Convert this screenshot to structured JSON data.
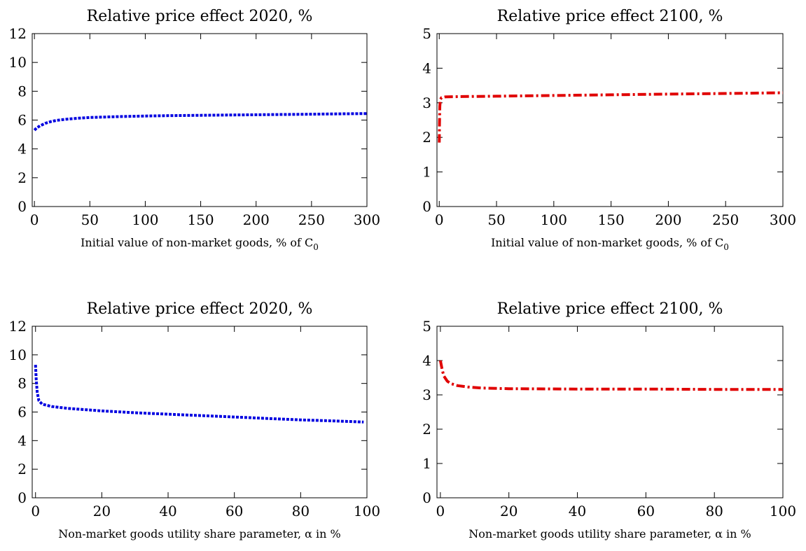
{
  "chart_data": [
    {
      "type": "line",
      "title": "Relative price effect 2020, %",
      "xlabel": "Initial value of non-market goods, % of C",
      "xlabel_sub": "0",
      "xlim": [
        -2,
        300
      ],
      "ylim": [
        0,
        12
      ],
      "xticks": [
        0,
        50,
        100,
        150,
        200,
        250,
        300
      ],
      "yticks": [
        0,
        2,
        4,
        6,
        8,
        10,
        12
      ],
      "grid": false,
      "series": [
        {
          "color": "#0000e0",
          "dash": "dotted",
          "points": [
            [
              0,
              5.3
            ],
            [
              2,
              5.45
            ],
            [
              5,
              5.6
            ],
            [
              10,
              5.78
            ],
            [
              15,
              5.9
            ],
            [
              20,
              5.98
            ],
            [
              30,
              6.07
            ],
            [
              40,
              6.13
            ],
            [
              50,
              6.18
            ],
            [
              75,
              6.24
            ],
            [
              100,
              6.28
            ],
            [
              125,
              6.31
            ],
            [
              150,
              6.33
            ],
            [
              175,
              6.35
            ],
            [
              200,
              6.37
            ],
            [
              225,
              6.39
            ],
            [
              250,
              6.41
            ],
            [
              275,
              6.43
            ],
            [
              300,
              6.45
            ]
          ]
        }
      ]
    },
    {
      "type": "line",
      "title": "Relative price effect 2100, %",
      "xlabel": "Initial value of non-market goods, % of C",
      "xlabel_sub": "0",
      "xlim": [
        -2,
        300
      ],
      "ylim": [
        0,
        5
      ],
      "xticks": [
        0,
        50,
        100,
        150,
        200,
        250,
        300
      ],
      "yticks": [
        0,
        1,
        2,
        3,
        4,
        5
      ],
      "grid": false,
      "series": [
        {
          "color": "#e00000",
          "dash": "dashdot",
          "points": [
            [
              0,
              1.85
            ],
            [
              0.2,
              2.4
            ],
            [
              0.5,
              2.9
            ],
            [
              1,
              3.1
            ],
            [
              2,
              3.15
            ],
            [
              5,
              3.17
            ],
            [
              20,
              3.18
            ],
            [
              50,
              3.19
            ],
            [
              100,
              3.21
            ],
            [
              150,
              3.23
            ],
            [
              200,
              3.25
            ],
            [
              250,
              3.27
            ],
            [
              300,
              3.29
            ]
          ]
        }
      ]
    },
    {
      "type": "line",
      "title": "Relative price effect 2020, %",
      "xlabel": "Non-market goods utility share parameter, α in %",
      "xlim": [
        -1,
        100
      ],
      "ylim": [
        0,
        12
      ],
      "xticks": [
        0,
        20,
        40,
        60,
        80,
        100
      ],
      "yticks": [
        0,
        2,
        4,
        6,
        8,
        10,
        12
      ],
      "grid": false,
      "series": [
        {
          "color": "#0000e0",
          "dash": "dotted",
          "points": [
            [
              0,
              9.3
            ],
            [
              0.2,
              8.3
            ],
            [
              0.5,
              7.4
            ],
            [
              1,
              6.8
            ],
            [
              2,
              6.55
            ],
            [
              5,
              6.38
            ],
            [
              10,
              6.25
            ],
            [
              20,
              6.08
            ],
            [
              30,
              5.95
            ],
            [
              40,
              5.85
            ],
            [
              50,
              5.75
            ],
            [
              60,
              5.65
            ],
            [
              70,
              5.55
            ],
            [
              80,
              5.45
            ],
            [
              90,
              5.38
            ],
            [
              99,
              5.3
            ]
          ]
        }
      ]
    },
    {
      "type": "line",
      "title": "Relative price effect 2100, %",
      "xlabel": "Non-market goods utility share parameter, α in %",
      "xlim": [
        -1,
        100
      ],
      "ylim": [
        0,
        5
      ],
      "xticks": [
        0,
        20,
        40,
        60,
        80,
        100
      ],
      "yticks": [
        0,
        1,
        2,
        3,
        4,
        5
      ],
      "grid": false,
      "series": [
        {
          "color": "#e00000",
          "dash": "dashdot",
          "points": [
            [
              0,
              4.0
            ],
            [
              0.5,
              3.75
            ],
            [
              1,
              3.55
            ],
            [
              2,
              3.4
            ],
            [
              3,
              3.33
            ],
            [
              5,
              3.27
            ],
            [
              8,
              3.23
            ],
            [
              12,
              3.2
            ],
            [
              20,
              3.18
            ],
            [
              40,
              3.17
            ],
            [
              60,
              3.17
            ],
            [
              80,
              3.16
            ],
            [
              100,
              3.16
            ]
          ]
        }
      ]
    }
  ]
}
